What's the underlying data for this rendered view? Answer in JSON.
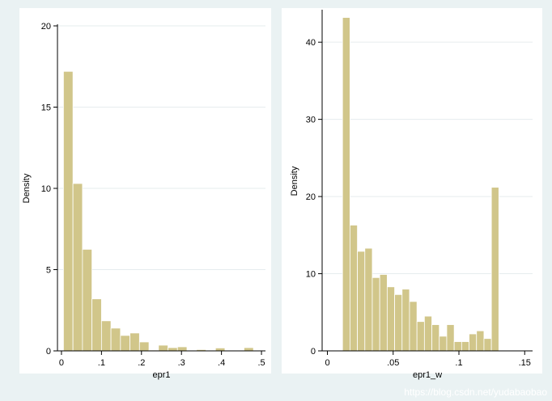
{
  "watermark": "https://blog.csdn.net/yudabaobao",
  "chart_data": [
    {
      "type": "bar",
      "subtype": "histogram",
      "title": "",
      "xlabel": "epr1",
      "ylabel": "Density",
      "xlim": [
        -0.01,
        0.51
      ],
      "ylim": [
        0,
        20
      ],
      "x_ticks": [
        0,
        0.1,
        0.2,
        0.3,
        0.4,
        0.5
      ],
      "x_tick_labels": [
        "0",
        ".1",
        ".2",
        ".3",
        ".4",
        ".5"
      ],
      "y_ticks": [
        0,
        5,
        10,
        15,
        20
      ],
      "y_tick_labels": [
        "0",
        "5",
        "10",
        "15",
        "20"
      ],
      "grid": true,
      "bar_color": "#d1c68a",
      "bin_start": 0.005,
      "bin_width": 0.02375,
      "values": [
        17.2,
        10.3,
        6.25,
        3.2,
        1.85,
        1.4,
        0.95,
        1.1,
        0.55,
        0.05,
        0.35,
        0.2,
        0.25,
        0.0,
        0.08,
        0.0,
        0.18,
        0.0,
        0.0,
        0.2
      ]
    },
    {
      "type": "bar",
      "subtype": "histogram",
      "title": "",
      "xlabel": "epr1_w",
      "ylabel": "Density",
      "xlim": [
        -0.004,
        0.156
      ],
      "ylim": [
        0,
        44
      ],
      "x_ticks": [
        0,
        0.05,
        0.1,
        0.15
      ],
      "x_tick_labels": [
        "0",
        ".05",
        ".1",
        ".15"
      ],
      "y_ticks": [
        0,
        10,
        20,
        30,
        40
      ],
      "y_tick_labels": [
        "0",
        "10",
        "20",
        "30",
        "40"
      ],
      "grid": true,
      "bar_color": "#d1c68a",
      "bin_start": 0.0115,
      "bin_width": 0.00566,
      "values": [
        43.2,
        16.3,
        12.9,
        13.3,
        9.5,
        9.9,
        8.3,
        7.3,
        8.0,
        6.4,
        3.8,
        4.5,
        3.4,
        1.9,
        3.4,
        1.2,
        1.2,
        2.2,
        2.6,
        1.6,
        21.2
      ]
    }
  ]
}
